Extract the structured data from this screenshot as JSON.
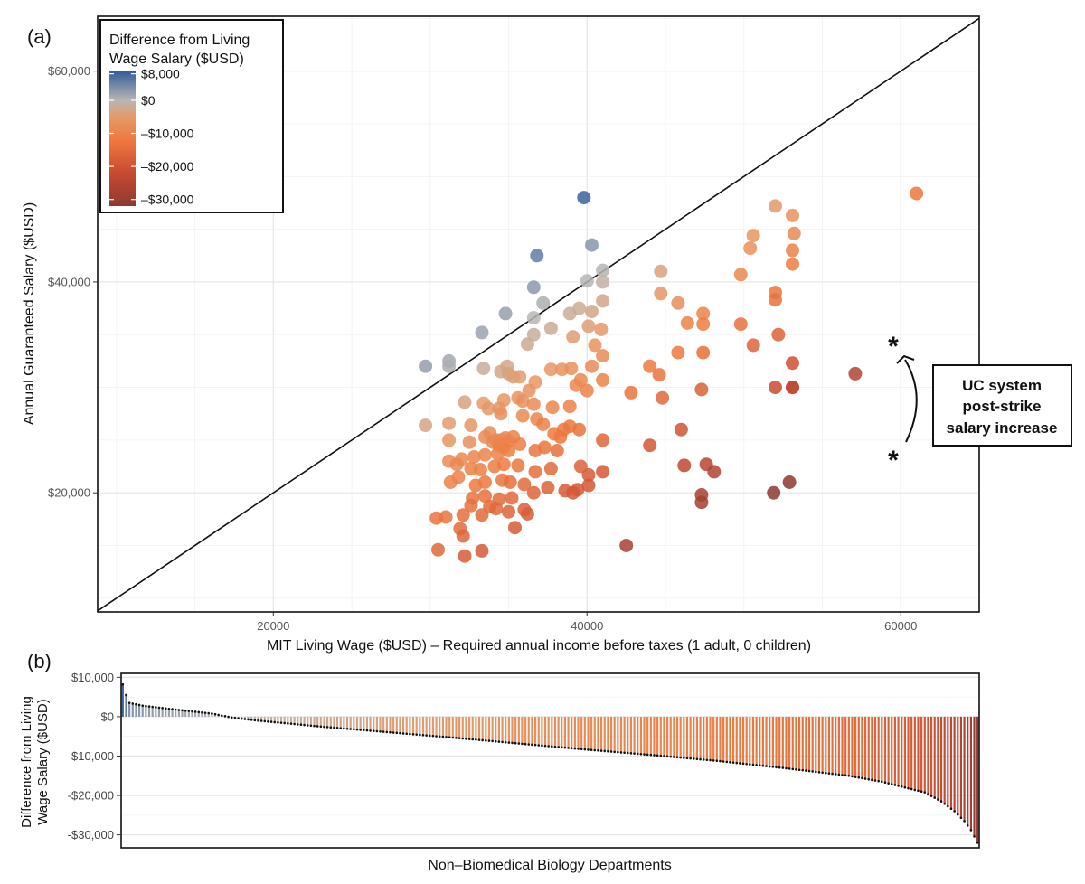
{
  "chart_data": [
    {
      "type": "scatter",
      "panel_label": "(a)",
      "xlabel": "MIT Living Wage ($USD) – Required annual income before taxes (1 adult, 0 children)",
      "ylabel": "Annual Guaranteed Salary ($USD)",
      "xlim": [
        8800,
        65000
      ],
      "ylim": [
        8700,
        65200
      ],
      "x_ticks": [
        20000,
        40000,
        60000
      ],
      "x_tick_labels": [
        "20000",
        "40000",
        "60000"
      ],
      "y_ticks": [
        20000,
        40000,
        60000
      ],
      "y_tick_labels": [
        "$20,000",
        "$40,000",
        "$60,000"
      ],
      "grid": true,
      "reference_line": "y = x",
      "legend": {
        "title_lines": [
          "Difference from Living",
          "Wage Salary ($USD)"
        ],
        "placement": "top-left",
        "range": [
          -32000,
          9000
        ],
        "stops": [
          {
            "value": 9000,
            "color": "#2f5a9a"
          },
          {
            "value": 0,
            "color": "#b8b6b4"
          },
          {
            "value": -5000,
            "color": "#e49a6a"
          },
          {
            "value": -12000,
            "color": "#ee7a3e"
          },
          {
            "value": -22000,
            "color": "#c84a32"
          },
          {
            "value": -32000,
            "color": "#8c3a30"
          }
        ],
        "ticks": [
          {
            "value": 8000,
            "label": "$8,000"
          },
          {
            "value": 0,
            "label": "$0"
          },
          {
            "value": -10000,
            "label": "–$10,000"
          },
          {
            "value": -20000,
            "label": "–$20,000"
          },
          {
            "value": -30000,
            "label": "–$30,000"
          }
        ]
      },
      "annotation": {
        "lines": [
          "UC system",
          "post-strike",
          "salary increase"
        ],
        "marker": "*",
        "from": [
          60000,
          23000
        ],
        "to": [
          60000,
          34000
        ]
      },
      "points": [
        [
          29700,
          32000
        ],
        [
          31200,
          32500
        ],
        [
          31200,
          32000
        ],
        [
          33300,
          35200
        ],
        [
          34800,
          37000
        ],
        [
          36600,
          39500
        ],
        [
          36800,
          42500
        ],
        [
          37200,
          38000
        ],
        [
          36600,
          36600
        ],
        [
          39800,
          48000
        ],
        [
          40300,
          43500
        ],
        [
          41000,
          41100
        ],
        [
          40000,
          40100
        ],
        [
          41000,
          40000
        ],
        [
          41000,
          38200
        ],
        [
          39500,
          37500
        ],
        [
          40300,
          37200
        ],
        [
          38900,
          37000
        ],
        [
          37700,
          35600
        ],
        [
          40100,
          35800
        ],
        [
          40900,
          35500
        ],
        [
          36600,
          35000
        ],
        [
          39100,
          34800
        ],
        [
          36200,
          34100
        ],
        [
          40500,
          34000
        ],
        [
          41000,
          33000
        ],
        [
          40300,
          32000
        ],
        [
          39000,
          31800
        ],
        [
          38400,
          31700
        ],
        [
          37700,
          31700
        ],
        [
          34900,
          32000
        ],
        [
          33400,
          31800
        ],
        [
          34500,
          31500
        ],
        [
          35000,
          31300
        ],
        [
          35300,
          31000
        ],
        [
          35700,
          31000
        ],
        [
          36700,
          30500
        ],
        [
          39300,
          30200
        ],
        [
          39600,
          30700
        ],
        [
          41000,
          30700
        ],
        [
          40000,
          29700
        ],
        [
          36300,
          29700
        ],
        [
          35600,
          29000
        ],
        [
          34700,
          28800
        ],
        [
          35900,
          28700
        ],
        [
          36600,
          28400
        ],
        [
          37800,
          28100
        ],
        [
          38900,
          28200
        ],
        [
          29700,
          26400
        ],
        [
          31200,
          26600
        ],
        [
          32600,
          26400
        ],
        [
          32200,
          28600
        ],
        [
          33400,
          28500
        ],
        [
          33700,
          28000
        ],
        [
          34400,
          28000
        ],
        [
          34500,
          27500
        ],
        [
          35900,
          27300
        ],
        [
          36800,
          27000
        ],
        [
          37200,
          26500
        ],
        [
          38500,
          26000
        ],
        [
          38900,
          26300
        ],
        [
          39500,
          26000
        ],
        [
          41000,
          25000
        ],
        [
          31200,
          25000
        ],
        [
          32500,
          24800
        ],
        [
          33500,
          25300
        ],
        [
          33800,
          25700
        ],
        [
          34000,
          24800
        ],
        [
          34200,
          25000
        ],
        [
          34400,
          24500
        ],
        [
          34500,
          25000
        ],
        [
          34700,
          24300
        ],
        [
          34800,
          25200
        ],
        [
          35000,
          24900
        ],
        [
          35300,
          25300
        ],
        [
          35000,
          24000
        ],
        [
          35700,
          24600
        ],
        [
          36700,
          24000
        ],
        [
          37300,
          24300
        ],
        [
          38100,
          24000
        ],
        [
          38300,
          25300
        ],
        [
          37900,
          25600
        ],
        [
          34300,
          23700
        ],
        [
          33500,
          23600
        ],
        [
          32800,
          23400
        ],
        [
          32000,
          23200
        ],
        [
          31200,
          23000
        ],
        [
          31700,
          22700
        ],
        [
          32600,
          22300
        ],
        [
          33200,
          22200
        ],
        [
          34100,
          22500
        ],
        [
          34700,
          22700
        ],
        [
          35600,
          22600
        ],
        [
          36700,
          22000
        ],
        [
          37700,
          22300
        ],
        [
          39600,
          22500
        ],
        [
          40100,
          21700
        ],
        [
          41000,
          22000
        ],
        [
          33500,
          21000
        ],
        [
          32900,
          20700
        ],
        [
          31800,
          21500
        ],
        [
          31300,
          21000
        ],
        [
          34600,
          21200
        ],
        [
          35100,
          21000
        ],
        [
          36000,
          20800
        ],
        [
          37500,
          20500
        ],
        [
          38600,
          20200
        ],
        [
          39100,
          20000
        ],
        [
          39400,
          20300
        ],
        [
          40100,
          20700
        ],
        [
          36600,
          20000
        ],
        [
          35200,
          19500
        ],
        [
          34400,
          19400
        ],
        [
          33500,
          19700
        ],
        [
          32700,
          19500
        ],
        [
          32600,
          18800
        ],
        [
          33800,
          18700
        ],
        [
          34200,
          18500
        ],
        [
          35000,
          18200
        ],
        [
          36200,
          18000
        ],
        [
          33300,
          17900
        ],
        [
          32100,
          17900
        ],
        [
          31000,
          17700
        ],
        [
          30400,
          17600
        ],
        [
          31900,
          16600
        ],
        [
          32100,
          15900
        ],
        [
          35400,
          16700
        ],
        [
          36000,
          18400
        ],
        [
          32200,
          14000
        ],
        [
          33300,
          14500
        ],
        [
          30500,
          14600
        ],
        [
          42500,
          15000
        ],
        [
          42800,
          29500
        ],
        [
          44000,
          32000
        ],
        [
          44600,
          31200
        ],
        [
          45800,
          38000
        ],
        [
          44700,
          38900
        ],
        [
          44700,
          41000
        ],
        [
          46400,
          36100
        ],
        [
          47400,
          37000
        ],
        [
          47400,
          36000
        ],
        [
          47400,
          33300
        ],
        [
          45800,
          33300
        ],
        [
          47300,
          29800
        ],
        [
          44800,
          29000
        ],
        [
          46000,
          26000
        ],
        [
          44000,
          24500
        ],
        [
          46200,
          22600
        ],
        [
          47600,
          22700
        ],
        [
          48100,
          22000
        ],
        [
          47300,
          19800
        ],
        [
          47300,
          19100
        ],
        [
          49800,
          36000
        ],
        [
          50600,
          34000
        ],
        [
          49800,
          40700
        ],
        [
          50400,
          43200
        ],
        [
          50600,
          44400
        ],
        [
          52000,
          47200
        ],
        [
          52000,
          39000
        ],
        [
          52000,
          38300
        ],
        [
          53100,
          46300
        ],
        [
          53200,
          44600
        ],
        [
          53100,
          43000
        ],
        [
          53100,
          41700
        ],
        [
          52200,
          35000
        ],
        [
          53100,
          32300
        ],
        [
          52000,
          30000
        ],
        [
          53100,
          30000
        ],
        [
          53100,
          30000
        ],
        [
          51900,
          20000
        ],
        [
          52900,
          21000
        ],
        [
          57100,
          31300
        ],
        [
          61000,
          48400
        ]
      ]
    },
    {
      "type": "bar",
      "panel_label": "(b)",
      "xlabel": "Non–Biomedical Biology Departments",
      "ylabel_lines": [
        "Difference from Living",
        "Wage Salary ($USD)"
      ],
      "ylim": [
        -33300,
        11000
      ],
      "y_ticks": [
        10000,
        0,
        -10000,
        -20000,
        -30000
      ],
      "y_tick_labels": [
        "$10,000",
        "$0",
        "-$10,000",
        "-$20,000",
        "-$30,000"
      ],
      "sorted": "descending",
      "count": 260,
      "profile": [
        [
          0,
          8200
        ],
        [
          1,
          5500
        ],
        [
          2,
          3500
        ],
        [
          6,
          2800
        ],
        [
          14,
          2000
        ],
        [
          27,
          800
        ],
        [
          33,
          -200
        ],
        [
          40,
          -900
        ],
        [
          60,
          -2500
        ],
        [
          80,
          -3900
        ],
        [
          100,
          -5300
        ],
        [
          120,
          -6800
        ],
        [
          140,
          -8300
        ],
        [
          160,
          -9700
        ],
        [
          180,
          -11200
        ],
        [
          200,
          -13000
        ],
        [
          220,
          -15000
        ],
        [
          230,
          -16500
        ],
        [
          240,
          -18600
        ],
        [
          243,
          -19200
        ],
        [
          248,
          -21500
        ],
        [
          252,
          -24000
        ],
        [
          255,
          -26500
        ],
        [
          257,
          -28800
        ],
        [
          259,
          -32000
        ]
      ]
    }
  ]
}
